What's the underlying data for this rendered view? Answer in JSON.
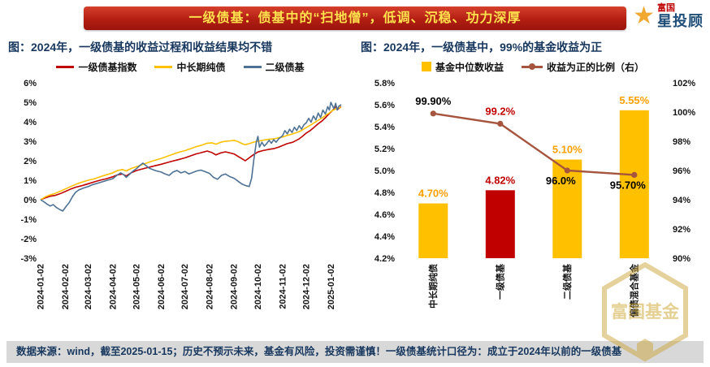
{
  "banner": {
    "title": "一级债基：债基中的“扫地僧”，低调、沉稳、功力深厚"
  },
  "logo": {
    "brand_small": "富国",
    "brand_main": "星投顾",
    "star_icon": "star",
    "star_color": "#F0A830"
  },
  "footer": {
    "text": "数据来源：wind，截至2025-01-15；历史不预示未来，基金有风险，投资需谨慎！一级债基统计口径为：成立于2024年以前的一级债基"
  },
  "watermark": {
    "text": "富国基金",
    "color": "#C9A227"
  },
  "chart_data": [
    {
      "type": "line",
      "title": "图：2024年，一级债基的收益过程和收益结果均不错",
      "xlabel": "",
      "ylabel": "",
      "grid": false,
      "legend_position": "top",
      "ylim": [
        -3,
        6
      ],
      "yticks": [
        {
          "value": 6,
          "label": "6%"
        },
        {
          "value": 5,
          "label": "5%"
        },
        {
          "value": 4,
          "label": "4%"
        },
        {
          "value": 3,
          "label": "3%"
        },
        {
          "value": 2,
          "label": "2%"
        },
        {
          "value": 1,
          "label": "1%"
        },
        {
          "value": 0,
          "label": "0%"
        },
        {
          "value": -1,
          "label": "-1%"
        },
        {
          "value": -2,
          "label": "-2%"
        },
        {
          "value": -3,
          "label": "-3%"
        }
      ],
      "xlim": [
        0,
        379
      ],
      "x_unit": "days since 2024-01-02",
      "xticks": [
        {
          "x": 0,
          "label": "2024-01-02"
        },
        {
          "x": 31,
          "label": "2024-02-02"
        },
        {
          "x": 60,
          "label": "2024-03-02"
        },
        {
          "x": 91,
          "label": "2024-04-02"
        },
        {
          "x": 121,
          "label": "2024-05-02"
        },
        {
          "x": 152,
          "label": "2024-06-02"
        },
        {
          "x": 182,
          "label": "2024-07-02"
        },
        {
          "x": 213,
          "label": "2024-08-02"
        },
        {
          "x": 244,
          "label": "2024-09-02"
        },
        {
          "x": 274,
          "label": "2024-10-02"
        },
        {
          "x": 305,
          "label": "2024-11-02"
        },
        {
          "x": 335,
          "label": "2024-12-02"
        },
        {
          "x": 366,
          "label": "2025-01-02"
        }
      ],
      "series": [
        {
          "name": "一级债基指数",
          "color": "#C00000",
          "points": [
            [
              0,
              0
            ],
            [
              6,
              0.1
            ],
            [
              12,
              0.18
            ],
            [
              18,
              0.22
            ],
            [
              24,
              0.3
            ],
            [
              31,
              0.42
            ],
            [
              38,
              0.55
            ],
            [
              45,
              0.65
            ],
            [
              52,
              0.72
            ],
            [
              60,
              0.82
            ],
            [
              68,
              0.92
            ],
            [
              75,
              1.0
            ],
            [
              83,
              1.08
            ],
            [
              91,
              1.18
            ],
            [
              97,
              1.28
            ],
            [
              103,
              1.32
            ],
            [
              108,
              1.22
            ],
            [
              114,
              1.38
            ],
            [
              121,
              1.5
            ],
            [
              128,
              1.58
            ],
            [
              135,
              1.65
            ],
            [
              142,
              1.72
            ],
            [
              152,
              1.82
            ],
            [
              159,
              1.9
            ],
            [
              166,
              1.98
            ],
            [
              173,
              2.05
            ],
            [
              182,
              2.15
            ],
            [
              189,
              2.25
            ],
            [
              196,
              2.35
            ],
            [
              203,
              2.42
            ],
            [
              210,
              2.5
            ],
            [
              216,
              2.42
            ],
            [
              221,
              2.3
            ],
            [
              227,
              2.4
            ],
            [
              233,
              2.46
            ],
            [
              239,
              2.4
            ],
            [
              244,
              2.35
            ],
            [
              249,
              2.22
            ],
            [
              254,
              2.1
            ],
            [
              258,
              2.0
            ],
            [
              263,
              2.15
            ],
            [
              268,
              2.3
            ],
            [
              274,
              2.45
            ],
            [
              280,
              2.52
            ],
            [
              287,
              2.58
            ],
            [
              294,
              2.62
            ],
            [
              300,
              2.7
            ],
            [
              305,
              2.78
            ],
            [
              311,
              2.88
            ],
            [
              318,
              2.95
            ],
            [
              325,
              3.1
            ],
            [
              330,
              3.25
            ],
            [
              335,
              3.42
            ],
            [
              340,
              3.55
            ],
            [
              345,
              3.72
            ],
            [
              350,
              3.9
            ],
            [
              355,
              4.05
            ],
            [
              360,
              4.25
            ],
            [
              364,
              4.42
            ],
            [
              366,
              4.5
            ],
            [
              369,
              4.62
            ],
            [
              372,
              4.78
            ],
            [
              375,
              4.65
            ],
            [
              379,
              4.78
            ]
          ]
        },
        {
          "name": "中长期纯债",
          "color": "#FFC000",
          "points": [
            [
              0,
              0
            ],
            [
              6,
              0.15
            ],
            [
              12,
              0.25
            ],
            [
              18,
              0.32
            ],
            [
              24,
              0.42
            ],
            [
              31,
              0.55
            ],
            [
              38,
              0.68
            ],
            [
              45,
              0.8
            ],
            [
              52,
              0.9
            ],
            [
              60,
              1.0
            ],
            [
              68,
              1.08
            ],
            [
              75,
              1.18
            ],
            [
              83,
              1.28
            ],
            [
              91,
              1.38
            ],
            [
              97,
              1.5
            ],
            [
              103,
              1.55
            ],
            [
              108,
              1.48
            ],
            [
              114,
              1.6
            ],
            [
              121,
              1.7
            ],
            [
              128,
              1.8
            ],
            [
              135,
              1.9
            ],
            [
              142,
              2.0
            ],
            [
              152,
              2.12
            ],
            [
              159,
              2.22
            ],
            [
              166,
              2.32
            ],
            [
              173,
              2.42
            ],
            [
              182,
              2.52
            ],
            [
              189,
              2.62
            ],
            [
              196,
              2.72
            ],
            [
              203,
              2.8
            ],
            [
              210,
              2.9
            ],
            [
              216,
              2.92
            ],
            [
              221,
              2.85
            ],
            [
              227,
              2.95
            ],
            [
              233,
              3.0
            ],
            [
              239,
              3.02
            ],
            [
              244,
              3.05
            ],
            [
              249,
              2.98
            ],
            [
              254,
              2.88
            ],
            [
              258,
              2.82
            ],
            [
              263,
              2.88
            ],
            [
              268,
              2.95
            ],
            [
              274,
              3.0
            ],
            [
              280,
              3.05
            ],
            [
              287,
              3.1
            ],
            [
              294,
              3.12
            ],
            [
              300,
              3.18
            ],
            [
              305,
              3.22
            ],
            [
              311,
              3.3
            ],
            [
              318,
              3.38
            ],
            [
              325,
              3.48
            ],
            [
              330,
              3.58
            ],
            [
              335,
              3.7
            ],
            [
              340,
              3.82
            ],
            [
              345,
              3.95
            ],
            [
              350,
              4.08
            ],
            [
              355,
              4.2
            ],
            [
              360,
              4.35
            ],
            [
              364,
              4.45
            ],
            [
              366,
              4.52
            ],
            [
              369,
              4.6
            ],
            [
              372,
              4.66
            ],
            [
              375,
              4.7
            ],
            [
              379,
              4.74
            ]
          ]
        },
        {
          "name": "二级债基",
          "color": "#4F7294",
          "points": [
            [
              0,
              0
            ],
            [
              4,
              -0.1
            ],
            [
              8,
              -0.22
            ],
            [
              12,
              -0.32
            ],
            [
              16,
              -0.25
            ],
            [
              20,
              -0.4
            ],
            [
              24,
              -0.5
            ],
            [
              28,
              -0.58
            ],
            [
              32,
              -0.35
            ],
            [
              36,
              -0.15
            ],
            [
              40,
              0.15
            ],
            [
              44,
              0.38
            ],
            [
              48,
              0.5
            ],
            [
              54,
              0.6
            ],
            [
              60,
              0.68
            ],
            [
              66,
              0.78
            ],
            [
              72,
              0.85
            ],
            [
              78,
              0.92
            ],
            [
              84,
              1.0
            ],
            [
              91,
              1.08
            ],
            [
              96,
              1.25
            ],
            [
              101,
              1.38
            ],
            [
              105,
              1.28
            ],
            [
              108,
              1.15
            ],
            [
              112,
              1.3
            ],
            [
              116,
              1.45
            ],
            [
              121,
              1.6
            ],
            [
              125,
              1.75
            ],
            [
              129,
              1.88
            ],
            [
              133,
              1.75
            ],
            [
              137,
              1.62
            ],
            [
              141,
              1.55
            ],
            [
              146,
              1.48
            ],
            [
              152,
              1.42
            ],
            [
              157,
              1.32
            ],
            [
              162,
              1.25
            ],
            [
              167,
              1.42
            ],
            [
              172,
              1.5
            ],
            [
              177,
              1.38
            ],
            [
              182,
              1.45
            ],
            [
              187,
              1.32
            ],
            [
              192,
              1.4
            ],
            [
              197,
              1.48
            ],
            [
              202,
              1.52
            ],
            [
              207,
              1.45
            ],
            [
              213,
              1.35
            ],
            [
              218,
              1.15
            ],
            [
              223,
              1.05
            ],
            [
              228,
              1.25
            ],
            [
              233,
              1.32
            ],
            [
              238,
              1.2
            ],
            [
              244,
              1.1
            ],
            [
              249,
              0.95
            ],
            [
              254,
              0.8
            ],
            [
              259,
              0.72
            ],
            [
              263,
              0.68
            ],
            [
              266,
              1.1
            ],
            [
              269,
              2.1
            ],
            [
              272,
              2.95
            ],
            [
              274,
              3.25
            ],
            [
              276,
              2.7
            ],
            [
              279,
              2.95
            ],
            [
              282,
              2.75
            ],
            [
              285,
              2.88
            ],
            [
              288,
              3.05
            ],
            [
              291,
              2.9
            ],
            [
              294,
              3.08
            ],
            [
              297,
              2.95
            ],
            [
              300,
              3.12
            ],
            [
              305,
              3.28
            ],
            [
              308,
              3.55
            ],
            [
              311,
              3.38
            ],
            [
              314,
              3.62
            ],
            [
              317,
              3.45
            ],
            [
              320,
              3.72
            ],
            [
              323,
              3.55
            ],
            [
              326,
              3.8
            ],
            [
              329,
              3.62
            ],
            [
              332,
              3.85
            ],
            [
              335,
              3.95
            ],
            [
              338,
              4.18
            ],
            [
              341,
              3.98
            ],
            [
              344,
              4.3
            ],
            [
              347,
              4.1
            ],
            [
              350,
              4.45
            ],
            [
              353,
              4.22
            ],
            [
              356,
              4.6
            ],
            [
              359,
              4.4
            ],
            [
              362,
              4.78
            ],
            [
              364,
              4.6
            ],
            [
              366,
              5.0
            ],
            [
              368,
              4.82
            ],
            [
              370,
              4.68
            ],
            [
              372,
              4.95
            ],
            [
              374,
              4.6
            ],
            [
              376,
              4.8
            ],
            [
              379,
              4.88
            ]
          ]
        }
      ]
    },
    {
      "type": "bar+line",
      "title": "图：2024年，一级债基中，99%的基金收益为正",
      "grid": false,
      "legend_position": "top",
      "categories": [
        "中长期纯债",
        "一级债基",
        "二级债基",
        "偏债混合基金"
      ],
      "left_axis": {
        "min": 4.2,
        "max": 5.8,
        "step": 0.2,
        "ticks": [
          "5.8%",
          "5.6%",
          "5.4%",
          "5.2%",
          "5.0%",
          "4.8%",
          "4.6%",
          "4.4%",
          "4.2%"
        ]
      },
      "right_axis": {
        "min": 90,
        "max": 102,
        "step": 2,
        "ticks": [
          "102%",
          "100%",
          "98%",
          "96%",
          "94%",
          "92%",
          "90%"
        ]
      },
      "bar_series": {
        "name": "基金中位数收益",
        "axis": "left",
        "color": "#FFC000",
        "values": [
          4.7,
          4.82,
          5.1,
          5.55
        ],
        "labels": [
          "4.70%",
          "4.82%",
          "5.10%",
          "5.55%"
        ],
        "colors": [
          "#FFC000",
          "#C00000",
          "#FFC000",
          "#FFC000"
        ],
        "label_colors": [
          "#FFA000",
          "#C00000",
          "#FFA000",
          "#FFA000"
        ]
      },
      "line_series": {
        "name": "收益为正的比例（右）",
        "axis": "right",
        "color": "#A5543D",
        "values": [
          99.9,
          99.2,
          96.0,
          95.7
        ],
        "labels": [
          "99.90%",
          "99.2%",
          "96.0%",
          "95.70%"
        ],
        "label_colors": [
          "#000000",
          "#C00000",
          "#000000",
          "#000000"
        ],
        "label_positions": [
          "above",
          "above",
          "below",
          "below"
        ]
      }
    }
  ]
}
